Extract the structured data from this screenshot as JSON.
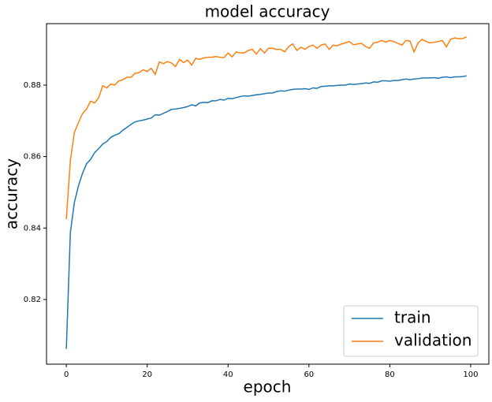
{
  "chart_data": {
    "type": "line",
    "title": "model accuracy",
    "x_label": "epoch",
    "y_label": "accuracy",
    "x": [
      0,
      1,
      2,
      3,
      4,
      5,
      6,
      7,
      8,
      9,
      10,
      11,
      12,
      13,
      14,
      15,
      16,
      17,
      18,
      19,
      20,
      21,
      22,
      23,
      24,
      25,
      26,
      27,
      28,
      29,
      30,
      31,
      32,
      33,
      34,
      35,
      36,
      37,
      38,
      39,
      40,
      41,
      42,
      43,
      44,
      45,
      46,
      47,
      48,
      49,
      50,
      51,
      52,
      53,
      54,
      55,
      56,
      57,
      58,
      59,
      60,
      61,
      62,
      63,
      64,
      65,
      66,
      67,
      68,
      69,
      70,
      71,
      72,
      73,
      74,
      75,
      76,
      77,
      78,
      79,
      80,
      81,
      82,
      83,
      84,
      85,
      86,
      87,
      88,
      89,
      90,
      91,
      92,
      93,
      94,
      95,
      96,
      97,
      98,
      99
    ],
    "series": [
      {
        "name": "train",
        "color": "#1f77b4",
        "values": [
          0.8062,
          0.8388,
          0.8472,
          0.8518,
          0.8553,
          0.858,
          0.8592,
          0.8611,
          0.8622,
          0.8635,
          0.8642,
          0.8654,
          0.866,
          0.8664,
          0.8674,
          0.8682,
          0.869,
          0.8697,
          0.87,
          0.8702,
          0.8705,
          0.8708,
          0.8717,
          0.8716,
          0.8721,
          0.8726,
          0.8732,
          0.8733,
          0.8735,
          0.8737,
          0.874,
          0.8745,
          0.8742,
          0.875,
          0.8752,
          0.8751,
          0.8756,
          0.8756,
          0.876,
          0.8758,
          0.8763,
          0.8762,
          0.8765,
          0.8768,
          0.877,
          0.8769,
          0.8771,
          0.8773,
          0.8774,
          0.8776,
          0.8778,
          0.8778,
          0.8782,
          0.8784,
          0.8783,
          0.8786,
          0.8788,
          0.8789,
          0.8789,
          0.879,
          0.8788,
          0.8792,
          0.8791,
          0.8796,
          0.8797,
          0.8798,
          0.8798,
          0.8799,
          0.88,
          0.88,
          0.8803,
          0.8802,
          0.8803,
          0.8804,
          0.8806,
          0.8805,
          0.8809,
          0.8808,
          0.8812,
          0.8812,
          0.8811,
          0.8813,
          0.8813,
          0.8815,
          0.8817,
          0.8815,
          0.8817,
          0.8818,
          0.882,
          0.882,
          0.882,
          0.8821,
          0.8819,
          0.8822,
          0.8823,
          0.8821,
          0.8823,
          0.8823,
          0.8824,
          0.8826
        ]
      },
      {
        "name": "validation",
        "color": "#ff7f0e",
        "values": [
          0.8425,
          0.859,
          0.8668,
          0.8695,
          0.872,
          0.8733,
          0.8755,
          0.875,
          0.8765,
          0.8798,
          0.8792,
          0.8803,
          0.88,
          0.8812,
          0.8815,
          0.8822,
          0.8822,
          0.8833,
          0.8835,
          0.8843,
          0.8838,
          0.8847,
          0.883,
          0.8865,
          0.886,
          0.8866,
          0.8862,
          0.8852,
          0.8872,
          0.8863,
          0.887,
          0.8856,
          0.8875,
          0.8872,
          0.8876,
          0.8878,
          0.8878,
          0.888,
          0.8878,
          0.8877,
          0.889,
          0.8879,
          0.8893,
          0.889,
          0.889,
          0.8897,
          0.89,
          0.8887,
          0.8902,
          0.889,
          0.8903,
          0.8903,
          0.89,
          0.89,
          0.8893,
          0.8908,
          0.8915,
          0.8897,
          0.8906,
          0.89,
          0.8908,
          0.8912,
          0.8903,
          0.8912,
          0.8915,
          0.89,
          0.8912,
          0.891,
          0.8915,
          0.8918,
          0.8922,
          0.8913,
          0.8915,
          0.8917,
          0.8908,
          0.8903,
          0.8918,
          0.892,
          0.8925,
          0.892,
          0.8925,
          0.8922,
          0.8917,
          0.8912,
          0.8925,
          0.8923,
          0.8893,
          0.8918,
          0.8928,
          0.8922,
          0.8918,
          0.892,
          0.8922,
          0.8925,
          0.8907,
          0.8928,
          0.8932,
          0.893,
          0.893,
          0.8935
        ]
      }
    ],
    "xlim": [
      -4.9,
      104.5
    ],
    "ylim": [
      0.8019,
      0.8972
    ],
    "xticks": [
      0,
      20,
      40,
      60,
      80,
      100
    ],
    "yticks": [
      0.82,
      0.84,
      0.86,
      0.88
    ],
    "grid": false,
    "legend": "lower right"
  }
}
